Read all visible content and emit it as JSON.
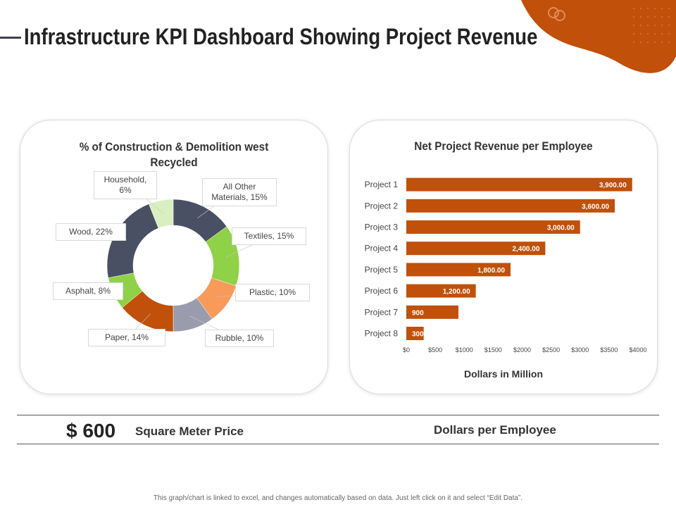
{
  "header": {
    "title": "Infrastructure KPI Dashboard Showing Project Revenue"
  },
  "colors": {
    "accent": "#c0500a",
    "dark": "#3f4150"
  },
  "donut": {
    "title_line1": "% of Construction & Demolition west",
    "title_line2": "Recycled"
  },
  "bar_chart": {
    "title": "Net Project Revenue per Employee",
    "xlabel": "Dollars in Million"
  },
  "chart_data": [
    {
      "type": "pie",
      "title": "% of Construction & Demolition west Recycled",
      "categories": [
        "All Other Materials",
        "Textiles",
        "Plastic",
        "Rubble",
        "Paper",
        "Asphalt",
        "Wood",
        "Household"
      ],
      "values": [
        15,
        15,
        10,
        10,
        14,
        8,
        22,
        6
      ],
      "labels": [
        "All Other\nMaterials, 15%",
        "Textiles, 15%",
        "Plastic, 10%",
        "Rubble,  10%",
        "Paper, 14%",
        "Asphalt, 8%",
        "Wood, 22%",
        "Household,\n6%"
      ],
      "colors": [
        "#4a5063",
        "#8fd147",
        "#f79a5a",
        "#9a9cad",
        "#c0500a",
        "#8fd147",
        "#4a5063",
        "#d9efc2"
      ]
    },
    {
      "type": "bar",
      "orientation": "horizontal",
      "title": "Net Project Revenue per Employee",
      "categories": [
        "Project 1",
        "Project 2",
        "Project 3",
        "Project 4",
        "Project 5",
        "Project 6",
        "Project 7",
        "Project 8"
      ],
      "values": [
        3900,
        3600,
        3000,
        2400,
        1800,
        1200,
        900,
        300
      ],
      "value_labels": [
        "3,900.00",
        "3,600.00",
        "3,000.00",
        "2,400.00",
        "1,800.00",
        "1,200.00",
        "900",
        "300"
      ],
      "xlabel": "Dollars in Million",
      "xlim": [
        0,
        4000
      ],
      "xticks": [
        "$0",
        "$500",
        "$1000",
        "$1500",
        "$2000",
        "$2500",
        "$3000",
        "$3500",
        "$4000"
      ],
      "color": "#c0500a"
    }
  ],
  "kpi": {
    "value": "$ 600",
    "label": "Square Meter Price",
    "label2": "Dollars per Employee"
  },
  "footer": {
    "note": "This graph/chart is linked to excel, and changes automatically based on data. Just left click on it and select “Edit Data”."
  }
}
